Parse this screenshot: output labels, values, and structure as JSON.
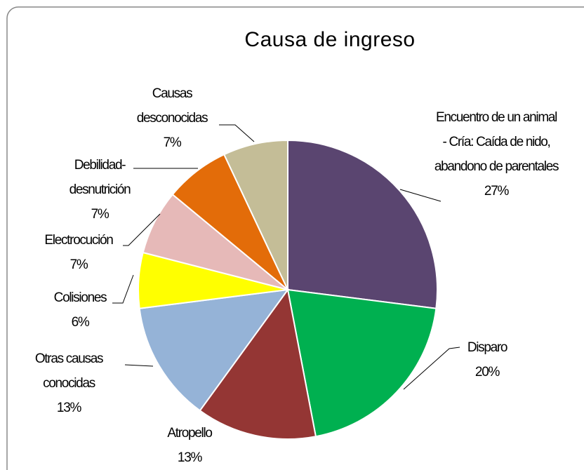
{
  "chart_data": {
    "type": "pie",
    "title": "Causa de ingreso",
    "categories": [
      "Encuentro de un animal - Cría: Caída de nido, abandono de parentales",
      "Disparo",
      "Atropello",
      "Otras causas conocidas",
      "Colisiones",
      "Electrocución",
      "Debilidad-desnutrición",
      "Causas desconocidas"
    ],
    "values": [
      27,
      20,
      13,
      13,
      6,
      7,
      7,
      7
    ],
    "value_labels": [
      "27%",
      "20%",
      "13%",
      "13%",
      "6%",
      "7%",
      "7%",
      "7%"
    ],
    "colors": [
      "#5a4570",
      "#00b050",
      "#943634",
      "#95b3d7",
      "#ffff00",
      "#e6b9b8",
      "#e36c09",
      "#c4bd97"
    ]
  }
}
